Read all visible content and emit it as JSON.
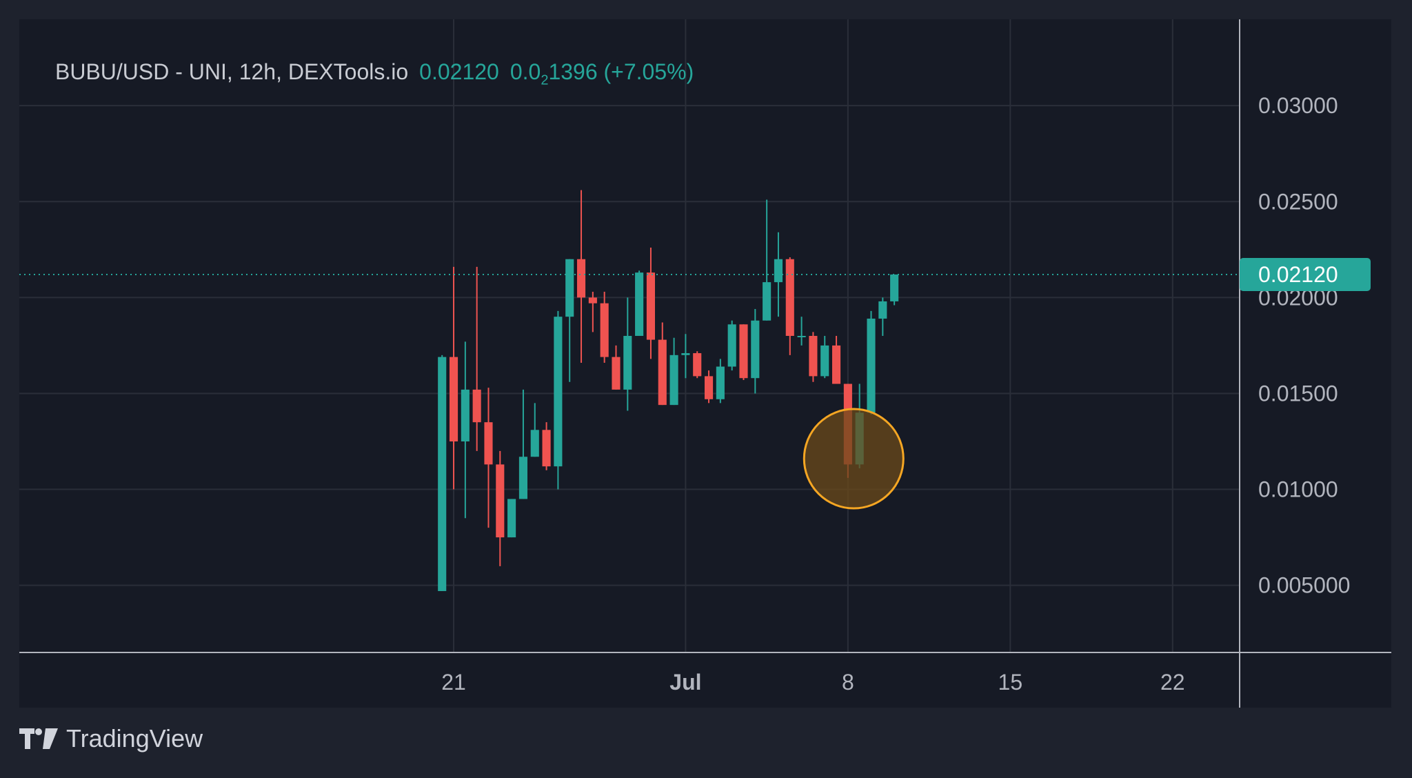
{
  "legend": {
    "symbol": "BUBU/USD - UNI, 12h, DEXTools.io",
    "last_value": "0.02120",
    "change_prefix": "0.0",
    "change_subscript": "2",
    "change_suffix": "1396",
    "change_pct": "(+7.05%)"
  },
  "footer": {
    "brand": "TradingView"
  },
  "colors": {
    "up": "#26a69a",
    "down": "#ef5350",
    "grid": "#2a2e39",
    "axis": "#b2b5be",
    "price_line": "#26a69a",
    "highlight_fill": "#6b4a1a",
    "highlight_stroke": "#f5a623"
  },
  "chart_data": {
    "type": "candlestick",
    "title": "BUBU/USD - UNI, 12h, DEXTools.io",
    "interval": "12h",
    "ylim": [
      0.0015,
      0.0345
    ],
    "y_ticks": [
      "0.03000",
      "0.02500",
      "0.02000",
      "0.01500",
      "0.01000",
      "0.005000"
    ],
    "y_tick_values": [
      0.03,
      0.025,
      0.02,
      0.015,
      0.01,
      0.005
    ],
    "x_ticks": [
      {
        "label": "21",
        "index": 1,
        "bold": false
      },
      {
        "label": "Jul",
        "index": 21,
        "bold": true
      },
      {
        "label": "8",
        "index": 35,
        "bold": false
      },
      {
        "label": "15",
        "index": 49,
        "bold": false
      },
      {
        "label": "22",
        "index": 63,
        "bold": false
      }
    ],
    "x_index_min": -36.46,
    "x_index_max": 68.78,
    "current_price": 0.0212,
    "current_price_label": "0.02120",
    "grid": true,
    "candles": [
      {
        "o": 0.0047,
        "h": 0.017,
        "l": 0.0047,
        "c": 0.0169
      },
      {
        "o": 0.0169,
        "h": 0.0216,
        "l": 0.01,
        "c": 0.0125
      },
      {
        "o": 0.0125,
        "h": 0.0177,
        "l": 0.0085,
        "c": 0.0152
      },
      {
        "o": 0.0152,
        "h": 0.0216,
        "l": 0.012,
        "c": 0.0135
      },
      {
        "o": 0.0135,
        "h": 0.0153,
        "l": 0.008,
        "c": 0.0113
      },
      {
        "o": 0.0113,
        "h": 0.012,
        "l": 0.006,
        "c": 0.0075
      },
      {
        "o": 0.0075,
        "h": 0.0095,
        "l": 0.0075,
        "c": 0.0095
      },
      {
        "o": 0.0095,
        "h": 0.0152,
        "l": 0.0095,
        "c": 0.0117
      },
      {
        "o": 0.0117,
        "h": 0.0145,
        "l": 0.0117,
        "c": 0.0131
      },
      {
        "o": 0.0131,
        "h": 0.0135,
        "l": 0.011,
        "c": 0.0112
      },
      {
        "o": 0.0112,
        "h": 0.0193,
        "l": 0.01,
        "c": 0.019
      },
      {
        "o": 0.019,
        "h": 0.022,
        "l": 0.0156,
        "c": 0.022
      },
      {
        "o": 0.022,
        "h": 0.0256,
        "l": 0.0166,
        "c": 0.02
      },
      {
        "o": 0.02,
        "h": 0.0203,
        "l": 0.0182,
        "c": 0.0197
      },
      {
        "o": 0.0197,
        "h": 0.0203,
        "l": 0.0166,
        "c": 0.0169
      },
      {
        "o": 0.0169,
        "h": 0.0175,
        "l": 0.0152,
        "c": 0.0152
      },
      {
        "o": 0.0152,
        "h": 0.02,
        "l": 0.0141,
        "c": 0.018
      },
      {
        "o": 0.018,
        "h": 0.0214,
        "l": 0.018,
        "c": 0.0213
      },
      {
        "o": 0.0213,
        "h": 0.0226,
        "l": 0.0168,
        "c": 0.0178
      },
      {
        "o": 0.0178,
        "h": 0.0187,
        "l": 0.0144,
        "c": 0.0144
      },
      {
        "o": 0.0144,
        "h": 0.0179,
        "l": 0.0144,
        "c": 0.017
      },
      {
        "o": 0.017,
        "h": 0.0181,
        "l": 0.0158,
        "c": 0.0171
      },
      {
        "o": 0.0171,
        "h": 0.0172,
        "l": 0.0158,
        "c": 0.0159
      },
      {
        "o": 0.0159,
        "h": 0.0162,
        "l": 0.0145,
        "c": 0.0147
      },
      {
        "o": 0.0147,
        "h": 0.0168,
        "l": 0.0145,
        "c": 0.0164
      },
      {
        "o": 0.0164,
        "h": 0.0188,
        "l": 0.0162,
        "c": 0.0186
      },
      {
        "o": 0.0186,
        "h": 0.0186,
        "l": 0.0157,
        "c": 0.0158
      },
      {
        "o": 0.0158,
        "h": 0.0194,
        "l": 0.015,
        "c": 0.0188
      },
      {
        "o": 0.0188,
        "h": 0.0251,
        "l": 0.0188,
        "c": 0.0208
      },
      {
        "o": 0.0208,
        "h": 0.0234,
        "l": 0.019,
        "c": 0.022
      },
      {
        "o": 0.022,
        "h": 0.0221,
        "l": 0.017,
        "c": 0.018
      },
      {
        "o": 0.018,
        "h": 0.019,
        "l": 0.0175,
        "c": 0.018
      },
      {
        "o": 0.018,
        "h": 0.0182,
        "l": 0.0156,
        "c": 0.0159
      },
      {
        "o": 0.0159,
        "h": 0.018,
        "l": 0.0158,
        "c": 0.0175
      },
      {
        "o": 0.0175,
        "h": 0.018,
        "l": 0.0155,
        "c": 0.0155
      },
      {
        "o": 0.0155,
        "h": 0.0155,
        "l": 0.0106,
        "c": 0.0113
      },
      {
        "o": 0.0113,
        "h": 0.0155,
        "l": 0.0111,
        "c": 0.014
      },
      {
        "o": 0.014,
        "h": 0.0193,
        "l": 0.0139,
        "c": 0.0189
      },
      {
        "o": 0.0189,
        "h": 0.02,
        "l": 0.018,
        "c": 0.0198
      },
      {
        "o": 0.0198,
        "h": 0.0212,
        "l": 0.0196,
        "c": 0.0212
      }
    ],
    "highlight": {
      "index": 35.5,
      "price": 0.0116,
      "label": ""
    }
  }
}
